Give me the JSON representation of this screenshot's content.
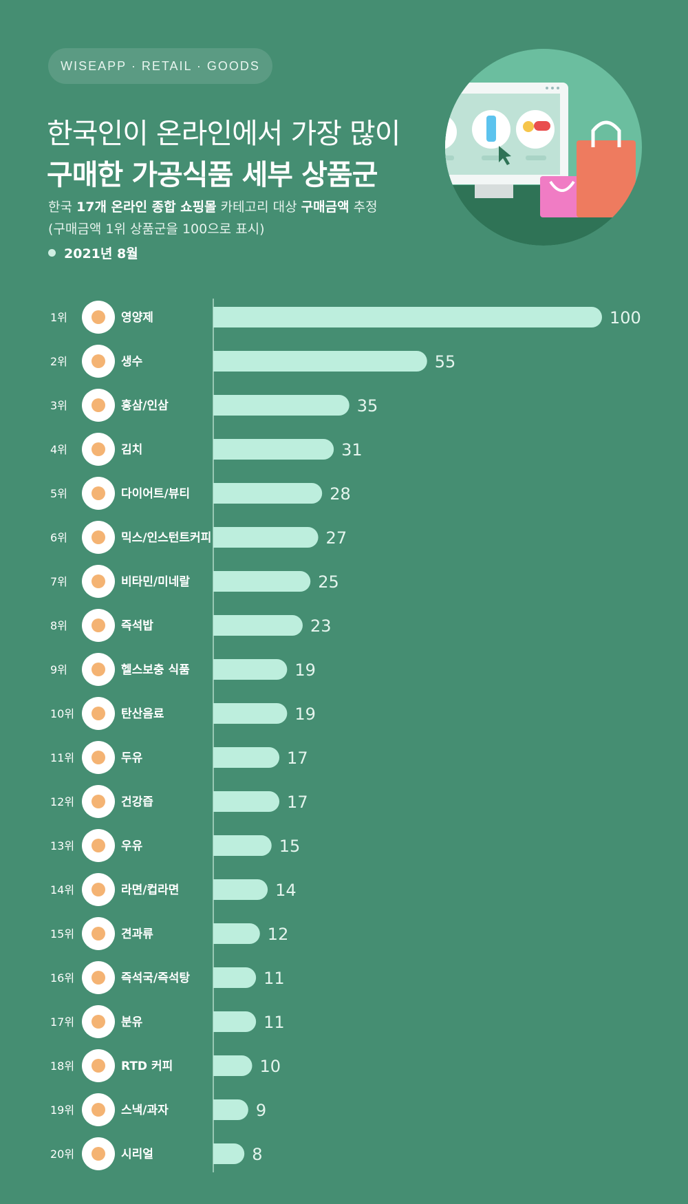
{
  "header": {
    "tag": "WISEAPP · RETAIL · GOODS",
    "title_line1": "한국인이 온라인에서 가장 많이",
    "title_line2": "구매한 가공식품 세부 상품군",
    "subtitle_part1": "한국",
    "subtitle_bold1": "17개 온라인 종합 쇼핑몰",
    "subtitle_part2": "카테고리 대상",
    "subtitle_bold2": "구매금액",
    "subtitle_part3": "추정",
    "subtitle_line2": "(구매금액 1위 상품군을 100으로 표시)",
    "date": "2021년 8월"
  },
  "colors": {
    "background": "#458E72",
    "bar": "#BDEEDD",
    "icon_circle": "#FFFFFF",
    "axis_line": "#CFEDE1"
  },
  "chart_data": {
    "type": "bar",
    "orientation": "horizontal",
    "categories": [
      "영양제",
      "생수",
      "홍삼/인삼",
      "김치",
      "다이어트/뷰티",
      "믹스/인스턴트커피",
      "비타민/미네랄",
      "즉석밥",
      "헬스보충 식품",
      "탄산음료",
      "두유",
      "건강즙",
      "우유",
      "라면/컵라면",
      "견과류",
      "즉석국/즉석탕",
      "분유",
      "RTD 커피",
      "스낵/과자",
      "시리얼"
    ],
    "ranks": [
      "1위",
      "2위",
      "3위",
      "4위",
      "5위",
      "6위",
      "7위",
      "8위",
      "9위",
      "10위",
      "11위",
      "12위",
      "13위",
      "14위",
      "15위",
      "16위",
      "17위",
      "18위",
      "19위",
      "20위"
    ],
    "values": [
      100,
      55,
      35,
      31,
      28,
      27,
      25,
      23,
      19,
      19,
      17,
      17,
      15,
      14,
      12,
      11,
      11,
      10,
      9,
      8
    ],
    "icons": [
      "pill-icon",
      "water-bottle-icon",
      "ginseng-icon",
      "kimchi-icon",
      "apple-tape-icon",
      "coffee-stick-icon",
      "vitamin-bottle-icon",
      "rice-bowl-icon",
      "protein-tub-icon",
      "soda-bottle-icon",
      "soy-milk-pack-icon",
      "juice-cup-icon",
      "milk-carton-icon",
      "ramen-pack-icon",
      "nuts-icon",
      "soup-cup-icon",
      "formula-can-icon",
      "coffee-bottle-icon",
      "snack-bag-icon",
      "cereal-box-icon"
    ],
    "xlim": [
      0,
      100
    ],
    "grid": false,
    "legend": "none"
  }
}
